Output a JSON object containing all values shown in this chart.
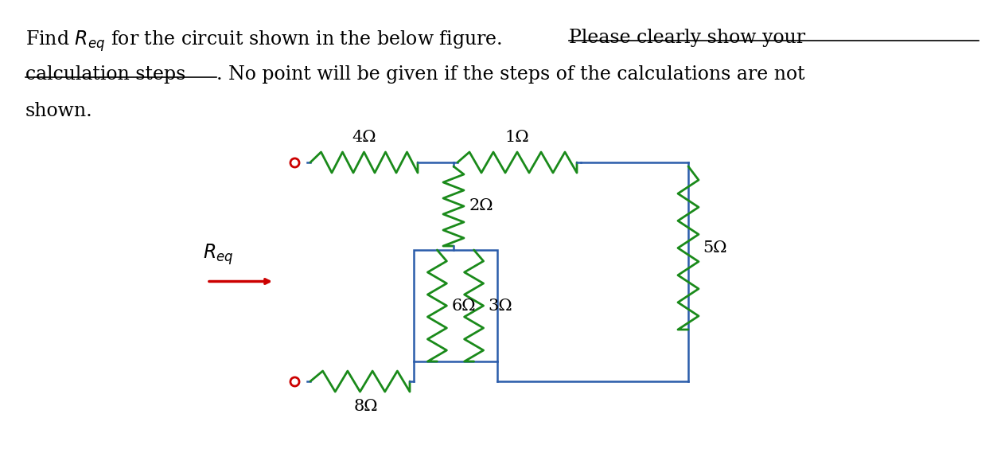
{
  "wire_color": "#2A5CAA",
  "resistor_color": "#1A8A1A",
  "terminal_color": "#CC0000",
  "arrow_color": "#CC0000",
  "background": "#FFFFFF",
  "labels": {
    "R4": "4Ω",
    "R1": "1Ω",
    "R2": "2Ω",
    "R5": "5Ω",
    "R6": "6Ω",
    "R3": "3Ω",
    "R8": "8Ω"
  },
  "font_size_label": 15,
  "font_size_header": 17,
  "header_line1a": "Find $R_{eq}$ for the circuit shown in the below figure. ",
  "header_line1b": "Please clearly show your",
  "header_line2a": "calculation steps",
  "header_line2b": ". No point will be given if the steps of the calculations are not",
  "header_line3": "shown."
}
